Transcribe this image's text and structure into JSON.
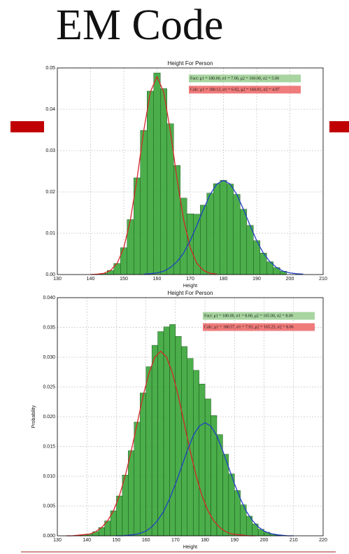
{
  "slide_title": "EM Code",
  "chart_data": [
    {
      "type": "histogram",
      "title": "Height For Person",
      "xlabel": "Height",
      "bins": [
        143,
        145,
        147,
        149,
        151,
        153,
        155,
        157,
        159,
        161,
        163,
        165,
        167,
        169,
        171,
        173,
        175,
        177,
        179,
        181,
        183,
        185,
        187,
        189,
        191,
        193,
        195,
        197,
        199
      ],
      "values": [
        0.0003,
        0.001,
        0.0027,
        0.0065,
        0.0133,
        0.0234,
        0.0349,
        0.0444,
        0.0488,
        0.045,
        0.0365,
        0.0264,
        0.0185,
        0.0147,
        0.0146,
        0.0168,
        0.0197,
        0.022,
        0.0228,
        0.0219,
        0.0194,
        0.0158,
        0.0119,
        0.0082,
        0.0052,
        0.0031,
        0.0017,
        0.0008
      ],
      "color": "#2ca02c",
      "curves": [
        {
          "color": "#d62728",
          "x": [
            140,
            142,
            144,
            146,
            148,
            150,
            152,
            154,
            156,
            158,
            160,
            162,
            164,
            166,
            168,
            170,
            172,
            174,
            176,
            178
          ],
          "values": [
            0.0,
            0.0001,
            0.0003,
            0.001,
            0.0027,
            0.0065,
            0.0133,
            0.0233,
            0.0348,
            0.0442,
            0.0479,
            0.0442,
            0.0348,
            0.0233,
            0.0133,
            0.0065,
            0.0027,
            0.001,
            0.0003,
            0.0001
          ]
        },
        {
          "color": "#1f3fc4",
          "x": [
            156,
            158,
            160,
            162,
            164,
            166,
            168,
            170,
            172,
            174,
            176,
            178,
            180,
            182,
            184,
            186,
            188,
            190,
            192,
            194,
            196,
            198,
            200,
            202,
            204
          ],
          "values": [
            0.0001,
            0.0002,
            0.0004,
            0.0008,
            0.0017,
            0.0031,
            0.0052,
            0.0082,
            0.0119,
            0.0158,
            0.0194,
            0.0219,
            0.0228,
            0.0219,
            0.0194,
            0.0158,
            0.0119,
            0.0082,
            0.0052,
            0.0031,
            0.0017,
            0.0008,
            0.0004,
            0.0002,
            0.0001
          ]
        }
      ],
      "annotations": [
        {
          "text": "Fact: μ1 = 180.00, σ1 = 7.00, μ2 = 160.00, σ2 = 5.00",
          "color": "#a8d5a0"
        },
        {
          "text": "Calc: μ1 = 180.13, σ1 = 6.92, μ2 = 160.01, σ2 = 4.97",
          "color": "#f07b7b"
        }
      ],
      "xlim": [
        130,
        210
      ],
      "xticks": [
        130,
        140,
        150,
        160,
        170,
        180,
        190,
        200,
        210
      ],
      "ylim": [
        0,
        0.05
      ],
      "yticks": [
        {
          "value": 0,
          "label": "0.00"
        },
        {
          "value": 0.01,
          "label": "0.01"
        },
        {
          "value": 0.02,
          "label": "0.02"
        },
        {
          "value": 0.03,
          "label": "0.03"
        },
        {
          "value": 0.04,
          "label": "0.04"
        },
        {
          "value": 0.05,
          "label": "0.05"
        }
      ],
      "grid": true
    },
    {
      "type": "histogram",
      "title": "Height For Person",
      "xlabel": "Height",
      "ylabel": "Probability",
      "bins": [
        136,
        138,
        140,
        142,
        144,
        146,
        148,
        150,
        152,
        154,
        156,
        158,
        160,
        162,
        164,
        166,
        168,
        170,
        172,
        174,
        176,
        178,
        180,
        182,
        184,
        186,
        188,
        190,
        192,
        194,
        196,
        198,
        200,
        202,
        204,
        206
      ],
      "values": [
        0.0001,
        0.0002,
        0.0003,
        0.0007,
        0.0014,
        0.0025,
        0.0042,
        0.0067,
        0.0102,
        0.0143,
        0.0191,
        0.024,
        0.0284,
        0.032,
        0.0343,
        0.0351,
        0.0355,
        0.0335,
        0.0318,
        0.0298,
        0.0278,
        0.0255,
        0.023,
        0.0202,
        0.017,
        0.0137,
        0.0104,
        0.0076,
        0.0052,
        0.0033,
        0.002,
        0.0011,
        0.0006,
        0.0003,
        0.0001
      ],
      "color": "#2ca02c",
      "curves": [
        {
          "color": "#d62728",
          "x": [
            133,
            135,
            137,
            139,
            141,
            143,
            145,
            147,
            149,
            151,
            153,
            155,
            157,
            159,
            161,
            163,
            165,
            167,
            169,
            171,
            173,
            175,
            177,
            179,
            181,
            183,
            185,
            187,
            189,
            191,
            193,
            195,
            197
          ],
          "values": [
            0.0,
            0.0,
            0.0001,
            0.0002,
            0.0003,
            0.0007,
            0.0014,
            0.0025,
            0.0042,
            0.0067,
            0.0101,
            0.0142,
            0.0188,
            0.0234,
            0.0273,
            0.03,
            0.031,
            0.03,
            0.0273,
            0.0234,
            0.0188,
            0.0142,
            0.0101,
            0.0067,
            0.0042,
            0.0025,
            0.0014,
            0.0007,
            0.0003,
            0.0002,
            0.0001,
            0.0,
            0.0
          ]
        },
        {
          "color": "#1f3fc4",
          "x": [
            150,
            152,
            154,
            156,
            158,
            160,
            162,
            164,
            166,
            168,
            170,
            172,
            174,
            176,
            178,
            180,
            182,
            184,
            186,
            188,
            190,
            192,
            194,
            196,
            198,
            200,
            202,
            204,
            206,
            208,
            210
          ],
          "values": [
            0.0,
            0.0,
            0.0001,
            0.0002,
            0.0004,
            0.0008,
            0.0015,
            0.0026,
            0.0041,
            0.0062,
            0.0087,
            0.0115,
            0.0143,
            0.0168,
            0.0184,
            0.019,
            0.0184,
            0.0168,
            0.0143,
            0.0115,
            0.0087,
            0.0062,
            0.0041,
            0.0026,
            0.0015,
            0.0008,
            0.0004,
            0.0002,
            0.0001,
            0.0,
            0.0
          ]
        }
      ],
      "annotations": [
        {
          "text": "Fact: μ1 = 180.00, σ1 = 8.00, μ2 = 165.00, σ2 = 8.00",
          "color": "#a8d5a0"
        },
        {
          "text": "Calc: μ1 = 180.57, σ1 = 7.93, μ2 = 165.25, σ2 = 8.06",
          "color": "#f07b7b"
        }
      ],
      "xlim": [
        130,
        220
      ],
      "xticks": [
        130,
        140,
        150,
        160,
        170,
        180,
        190,
        200,
        210,
        220
      ],
      "ylim": [
        0,
        0.04
      ],
      "yticks": [
        {
          "value": 0,
          "label": "0.000"
        },
        {
          "value": 0.005,
          "label": "0.005"
        },
        {
          "value": 0.01,
          "label": "0.010"
        },
        {
          "value": 0.015,
          "label": "0.015"
        },
        {
          "value": 0.02,
          "label": "0.020"
        },
        {
          "value": 0.025,
          "label": "0.025"
        },
        {
          "value": 0.03,
          "label": "0.030"
        },
        {
          "value": 0.035,
          "label": "0.035"
        },
        {
          "value": 0.04,
          "label": "0.040"
        }
      ],
      "grid": true
    }
  ]
}
